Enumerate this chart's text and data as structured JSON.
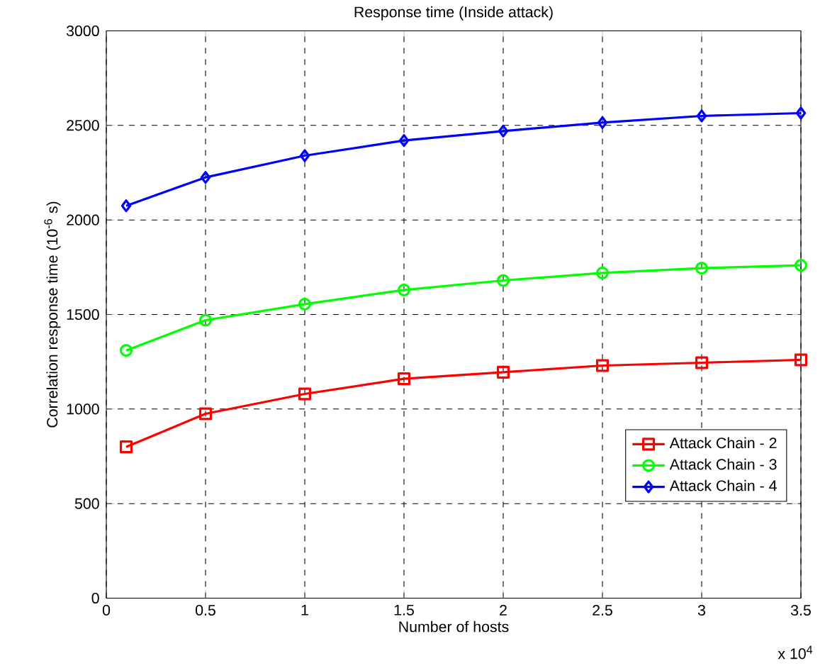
{
  "chart_data": {
    "type": "line",
    "title": "Response time (Inside attack)",
    "xlabel": "Number of hosts",
    "ylabel": "Correlation response time (10$^{-6}$ s)",
    "x": [
      0.1,
      0.5,
      1,
      1.5,
      2,
      2.5,
      3,
      3.5
    ],
    "series": [
      {
        "name": "Attack Chain - 2",
        "color": "#ff0000",
        "marker": "square",
        "values": [
          800,
          975,
          1080,
          1160,
          1195,
          1230,
          1245,
          1260
        ]
      },
      {
        "name": "Attack Chain - 3",
        "color": "#00ff00",
        "marker": "circle",
        "values": [
          1310,
          1470,
          1555,
          1630,
          1680,
          1720,
          1745,
          1760
        ]
      },
      {
        "name": "Attack Chain - 4",
        "color": "#0000ff",
        "marker": "diamond",
        "values": [
          2075,
          2225,
          2340,
          2420,
          2470,
          2515,
          2550,
          2565
        ]
      }
    ],
    "xlim": [
      0,
      3.5
    ],
    "ylim": [
      0,
      3000
    ],
    "xticks": [
      0,
      0.5,
      1,
      1.5,
      2,
      2.5,
      3,
      3.5
    ],
    "yticks": [
      0,
      500,
      1000,
      1500,
      2000,
      2500,
      3000
    ],
    "grid": true,
    "legend": "bottom right",
    "line_style": "solid",
    "annotations": [
      "x 10$^{4}$"
    ]
  }
}
